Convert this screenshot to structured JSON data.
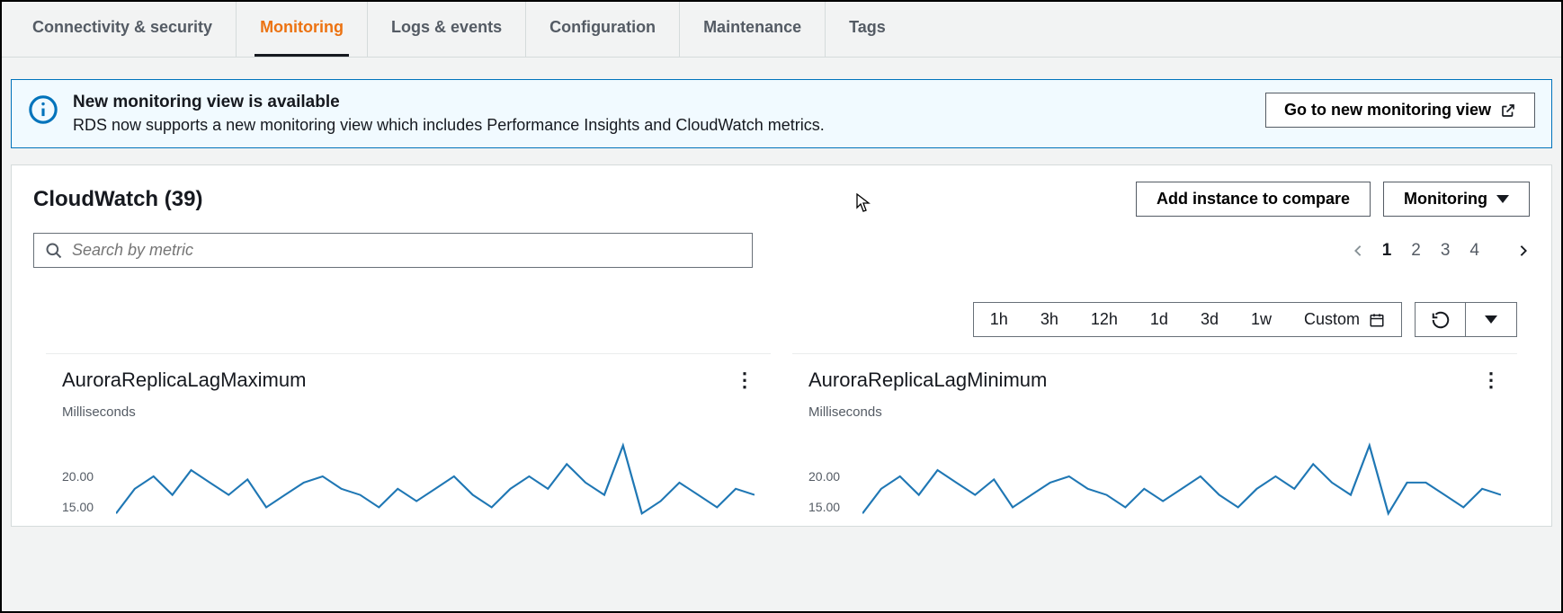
{
  "tabs": [
    {
      "label": "Connectivity & security",
      "active": false
    },
    {
      "label": "Monitoring",
      "active": true
    },
    {
      "label": "Logs & events",
      "active": false
    },
    {
      "label": "Configuration",
      "active": false
    },
    {
      "label": "Maintenance",
      "active": false
    },
    {
      "label": "Tags",
      "active": false
    }
  ],
  "banner": {
    "title": "New monitoring view is available",
    "desc": "RDS now supports a new monitoring view which includes Performance Insights and CloudWatch metrics.",
    "button": "Go to new monitoring view"
  },
  "section": {
    "title": "CloudWatch (39)",
    "add_button": "Add instance to compare",
    "monitoring_button": "Monitoring",
    "search_placeholder": "Search by metric",
    "pages": [
      "1",
      "2",
      "3",
      "4"
    ],
    "current_page": "1"
  },
  "time_ranges": [
    "1h",
    "3h",
    "12h",
    "1d",
    "3d",
    "1w"
  ],
  "time_custom": "Custom",
  "charts": [
    {
      "title": "AuroraReplicaLagMaximum",
      "unit": "Milliseconds",
      "yticks": [
        {
          "label": "20.00",
          "v": 20
        },
        {
          "label": "15.00",
          "v": 15
        }
      ],
      "ylim": [
        12,
        28
      ],
      "line_color": "#1f77b4",
      "series": [
        14,
        18,
        20,
        17,
        21,
        19,
        17,
        19.5,
        15,
        17,
        19,
        20,
        18,
        17,
        15,
        18,
        16,
        18,
        20,
        17,
        15,
        18,
        20,
        18,
        22,
        19,
        17,
        25,
        14,
        16,
        19,
        17,
        15,
        18,
        17
      ]
    },
    {
      "title": "AuroraReplicaLagMinimum",
      "unit": "Milliseconds",
      "yticks": [
        {
          "label": "20.00",
          "v": 20
        },
        {
          "label": "15.00",
          "v": 15
        }
      ],
      "ylim": [
        12,
        28
      ],
      "line_color": "#1f77b4",
      "series": [
        14,
        18,
        20,
        17,
        21,
        19,
        17,
        19.5,
        15,
        17,
        19,
        20,
        18,
        17,
        15,
        18,
        16,
        18,
        20,
        17,
        15,
        18,
        20,
        18,
        22,
        19,
        17,
        25,
        14,
        19,
        19,
        17,
        15,
        18,
        17
      ]
    }
  ],
  "colors": {
    "accent": "#ec7211",
    "info": "#0073bb",
    "border": "#687078"
  }
}
